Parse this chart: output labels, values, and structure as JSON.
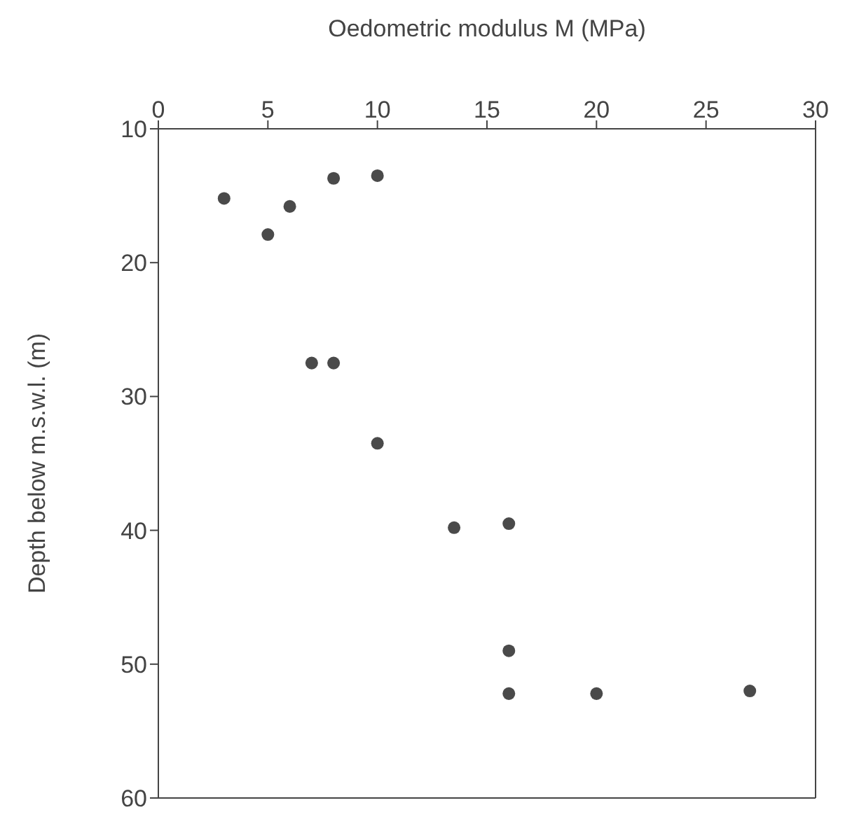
{
  "chart_data": {
    "type": "scatter",
    "xlabel": "Oedometric modulus M (MPa)",
    "ylabel": "Depth below m.s.w.l. (m)",
    "x": [
      10,
      8,
      3,
      6,
      5,
      7,
      8,
      10,
      13.5,
      16,
      16,
      16,
      20,
      27
    ],
    "series": [
      {
        "color": "#4a4a4a",
        "values": [
          13.5,
          13.7,
          15.2,
          15.8,
          17.9,
          27.5,
          27.5,
          33.5,
          39.8,
          39.5,
          49,
          52.2,
          52.2,
          52
        ]
      }
    ],
    "xlim": [
      0,
      30
    ],
    "xticks": [
      0,
      5,
      10,
      15,
      20,
      25,
      30
    ],
    "ylim": [
      60,
      10
    ],
    "yticks": [
      10,
      20,
      30,
      40,
      50,
      60
    ],
    "marker": "circle"
  }
}
